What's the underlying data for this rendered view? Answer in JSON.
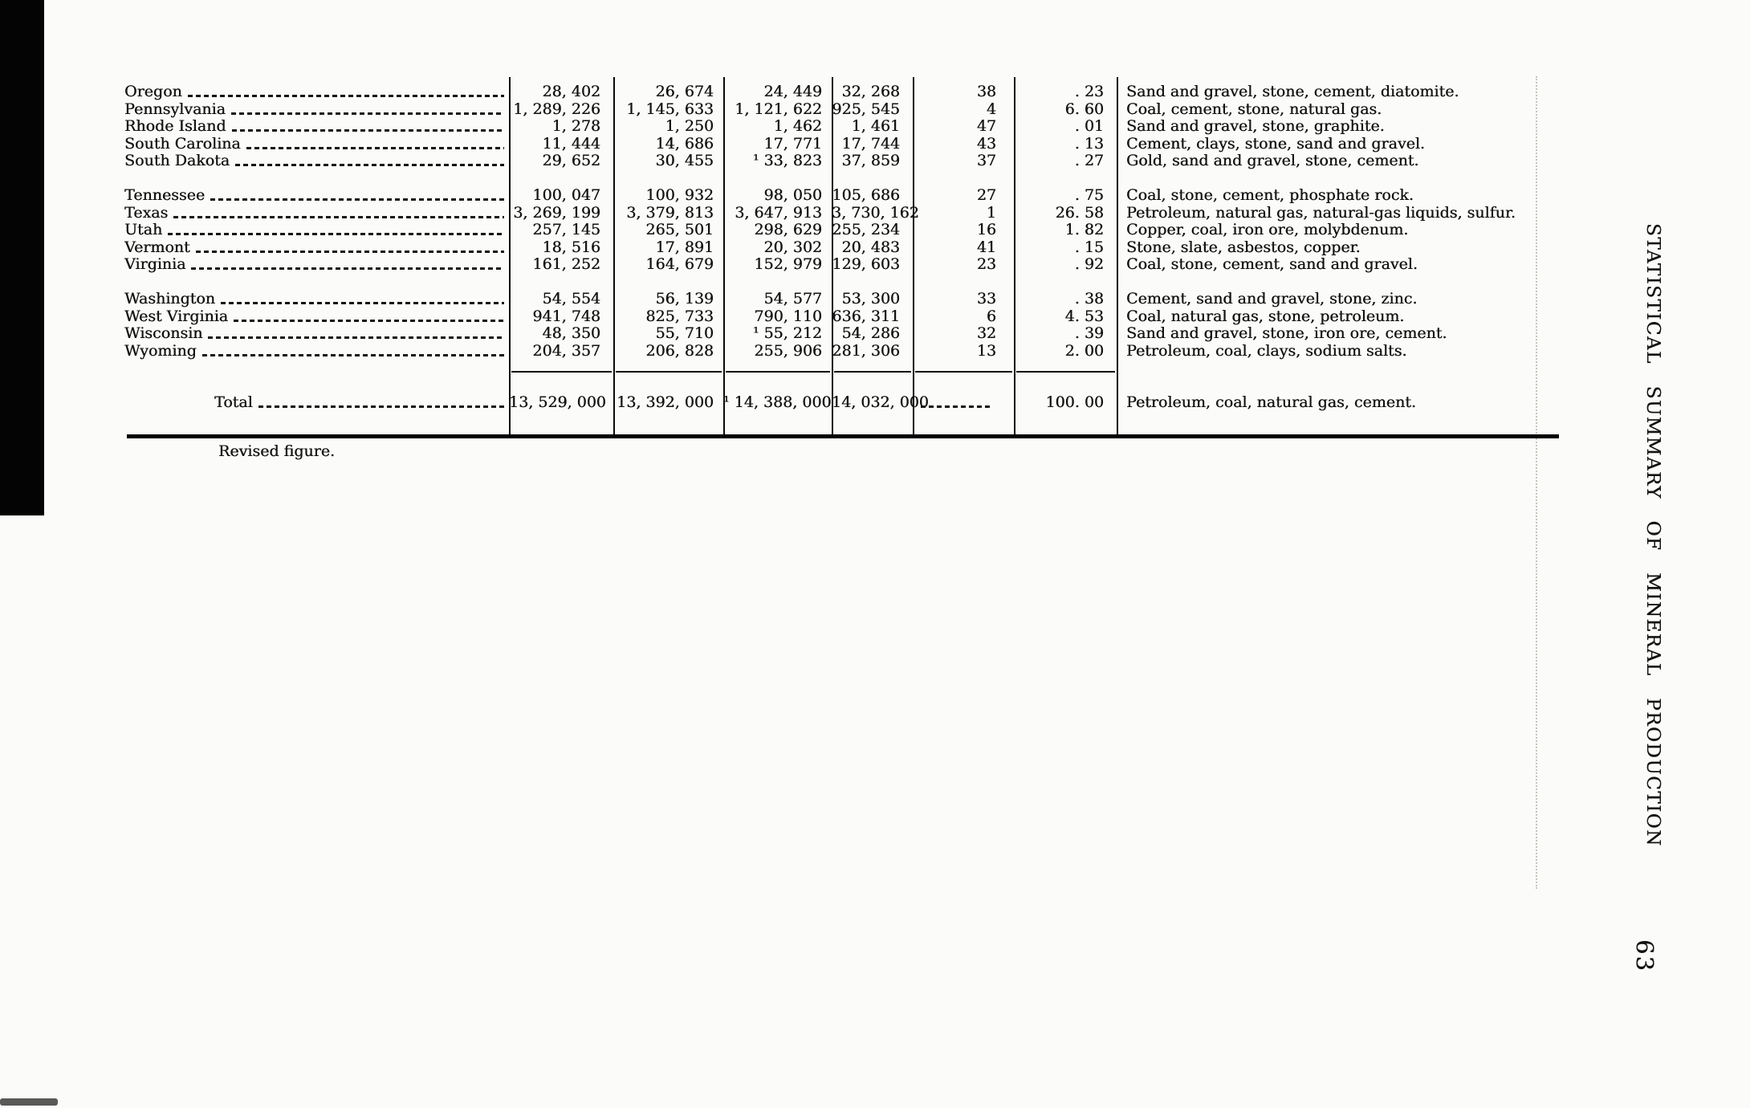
{
  "page": {
    "side_title": "STATISTICAL SUMMARY OF MINERAL PRODUCTION",
    "page_number": "63",
    "footnote": "Revised figure."
  },
  "table": {
    "groups": [
      {
        "rows": [
          {
            "state": "Oregon",
            "v1": "28, 402",
            "v2": "26, 674",
            "v3": "24, 449",
            "v4": "32, 268",
            "rank": "38",
            "pct": ". 23",
            "minerals": "Sand and gravel, stone, cement, diatomite."
          },
          {
            "state": "Pennsylvania",
            "v1": "1, 289, 226",
            "v2": "1, 145, 633",
            "v3": "1, 121, 622",
            "v4": "925, 545",
            "rank": "4",
            "pct": "6. 60",
            "minerals": "Coal, cement, stone, natural gas."
          },
          {
            "state": "Rhode Island",
            "v1": "1, 278",
            "v2": "1, 250",
            "v3": "1, 462",
            "v4": "1, 461",
            "rank": "47",
            "pct": ". 01",
            "minerals": "Sand and gravel, stone, graphite."
          },
          {
            "state": "South Carolina",
            "v1": "11, 444",
            "v2": "14, 686",
            "v3": "17, 771",
            "v4": "17, 744",
            "rank": "43",
            "pct": ". 13",
            "minerals": "Cement, clays, stone, sand and gravel."
          },
          {
            "state": "South Dakota",
            "v1": "29, 652",
            "v2": "30, 455",
            "v3": "¹ 33, 823",
            "v4": "37, 859",
            "rank": "37",
            "pct": ". 27",
            "minerals": "Gold, sand and gravel, stone, cement."
          }
        ]
      },
      {
        "rows": [
          {
            "state": "Tennessee",
            "v1": "100, 047",
            "v2": "100, 932",
            "v3": "98, 050",
            "v4": "105, 686",
            "rank": "27",
            "pct": ". 75",
            "minerals": "Coal, stone, cement, phosphate rock."
          },
          {
            "state": "Texas",
            "v1": "3, 269, 199",
            "v2": "3, 379, 813",
            "v3": "3, 647, 913",
            "v4": "3, 730, 162",
            "rank": "1",
            "pct": "26. 58",
            "minerals": "Petroleum, natural gas, natural-gas liquids, sulfur."
          },
          {
            "state": "Utah",
            "v1": "257, 145",
            "v2": "265, 501",
            "v3": "298, 629",
            "v4": "255, 234",
            "rank": "16",
            "pct": "1. 82",
            "minerals": "Copper, coal, iron ore, molybdenum."
          },
          {
            "state": "Vermont",
            "v1": "18, 516",
            "v2": "17, 891",
            "v3": "20, 302",
            "v4": "20, 483",
            "rank": "41",
            "pct": ". 15",
            "minerals": "Stone, slate, asbestos, copper."
          },
          {
            "state": "Virginia",
            "v1": "161, 252",
            "v2": "164, 679",
            "v3": "152, 979",
            "v4": "129, 603",
            "rank": "23",
            "pct": ". 92",
            "minerals": "Coal, stone, cement, sand and gravel."
          }
        ]
      },
      {
        "rows": [
          {
            "state": "Washington",
            "v1": "54, 554",
            "v2": "56, 139",
            "v3": "54, 577",
            "v4": "53, 300",
            "rank": "33",
            "pct": ". 38",
            "minerals": "Cement, sand and gravel, stone, zinc."
          },
          {
            "state": "West Virginia",
            "v1": "941, 748",
            "v2": "825, 733",
            "v3": "790, 110",
            "v4": "636, 311",
            "rank": "6",
            "pct": "4. 53",
            "minerals": "Coal, natural gas, stone, petroleum."
          },
          {
            "state": "Wisconsin",
            "v1": "48, 350",
            "v2": "55, 710",
            "v3": "¹ 55, 212",
            "v4": "54, 286",
            "rank": "32",
            "pct": ". 39",
            "minerals": "Sand and gravel, stone, iron ore, cement."
          },
          {
            "state": "Wyoming",
            "v1": "204, 357",
            "v2": "206, 828",
            "v3": "255, 906",
            "v4": "281, 306",
            "rank": "13",
            "pct": "2. 00",
            "minerals": "Petroleum, coal, clays, sodium salts."
          }
        ]
      }
    ],
    "total": {
      "state": "Total",
      "v1": "13, 529, 000",
      "v2": "13, 392, 000",
      "v3": "¹ 14, 388, 000",
      "v4": "14, 032, 000",
      "rank": "",
      "pct": "100. 00",
      "minerals": "Petroleum, coal, natural gas, cement."
    }
  }
}
